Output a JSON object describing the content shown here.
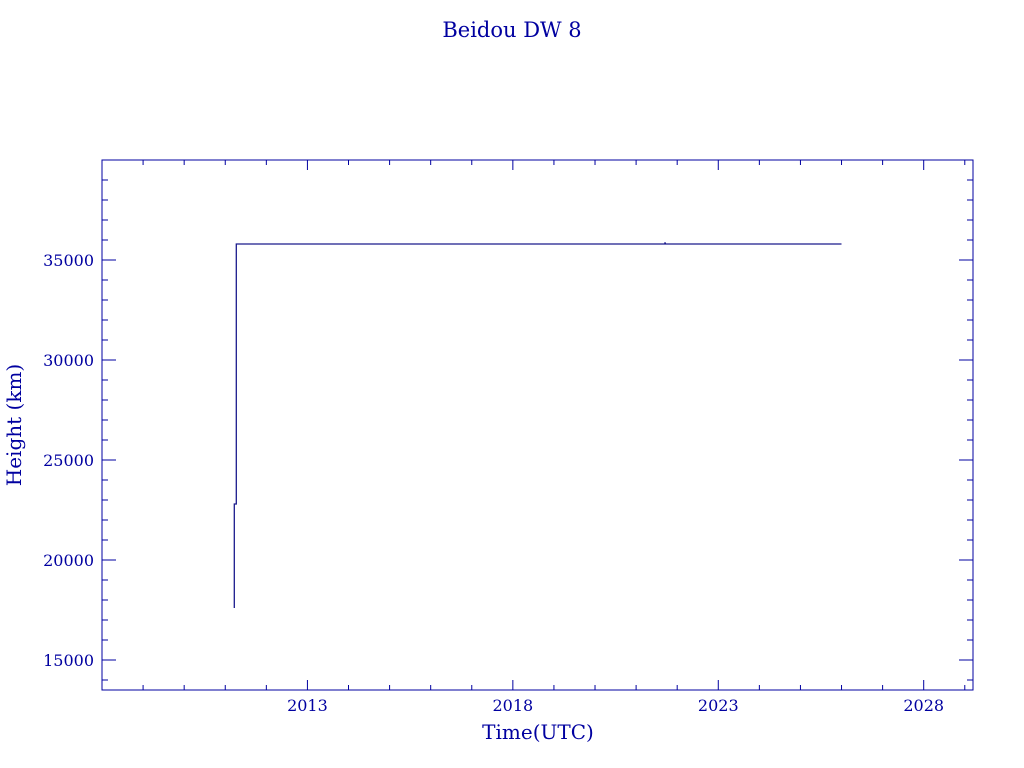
{
  "chart_data": {
    "type": "line",
    "title": "Beidou DW 8",
    "xlabel": "Time(UTC)",
    "ylabel": "Height (km)",
    "xlim": [
      2008.0,
      2029.2
    ],
    "ylim": [
      13500,
      40000
    ],
    "xticks": [
      2013,
      2018,
      2023,
      2028
    ],
    "xtick_labels": [
      "2013",
      "2018",
      "2023",
      "2028"
    ],
    "yticks": [
      15000,
      20000,
      25000,
      30000,
      35000
    ],
    "ytick_labels": [
      "15000",
      "20000",
      "25000",
      "30000",
      "35000"
    ],
    "grid": false,
    "axis_color": "#0000a0",
    "line_color": "#1a1a8c",
    "series": [
      {
        "x": [
          2011.22,
          2011.22,
          2011.27,
          2011.27,
          2021.7,
          2021.7,
          2021.72,
          2026.0
        ],
        "y": [
          17600,
          22800,
          22800,
          35800,
          35800,
          35880,
          35800,
          35800
        ]
      }
    ]
  }
}
